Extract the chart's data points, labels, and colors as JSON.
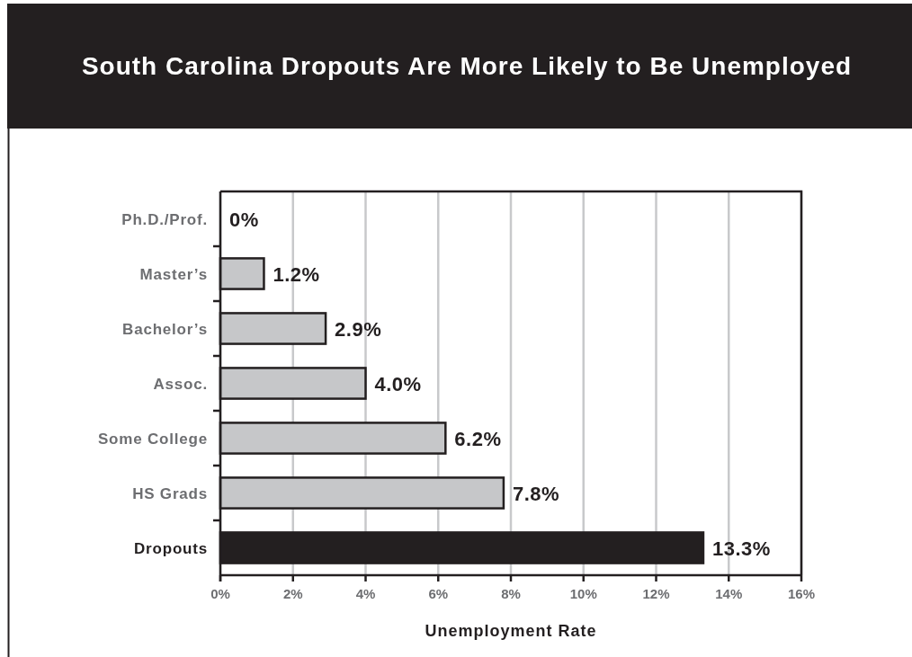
{
  "chart_data": {
    "type": "bar",
    "orientation": "horizontal",
    "title": "South Carolina Dropouts Are More Likely to Be Unemployed",
    "xlabel": "Unemployment Rate",
    "categories": [
      "Ph.D./Prof.",
      "Master’s",
      "Bachelor’s",
      "Assoc.",
      "Some College",
      "HS Grads",
      "Dropouts"
    ],
    "values": [
      0,
      1.2,
      2.9,
      4.0,
      6.2,
      7.8,
      13.3
    ],
    "value_labels": [
      "0%",
      "1.2%",
      "2.9%",
      "4.0%",
      "6.2%",
      "7.8%",
      "13.3%"
    ],
    "colors": [
      "#c6c7c9",
      "#c6c7c9",
      "#c6c7c9",
      "#c6c7c9",
      "#c6c7c9",
      "#c6c7c9",
      "#231f20"
    ],
    "xlim": [
      0,
      16
    ],
    "xticks": [
      {
        "value": 0,
        "label": "0%"
      },
      {
        "value": 2,
        "label": "2%"
      },
      {
        "value": 4,
        "label": "4%"
      },
      {
        "value": 6,
        "label": "6%"
      },
      {
        "value": 8,
        "label": "8%"
      },
      {
        "value": 10,
        "label": "10%"
      },
      {
        "value": 12,
        "label": "12%"
      },
      {
        "value": 14,
        "label": "14%"
      },
      {
        "value": 16,
        "label": "16%"
      }
    ],
    "grid": "x"
  }
}
